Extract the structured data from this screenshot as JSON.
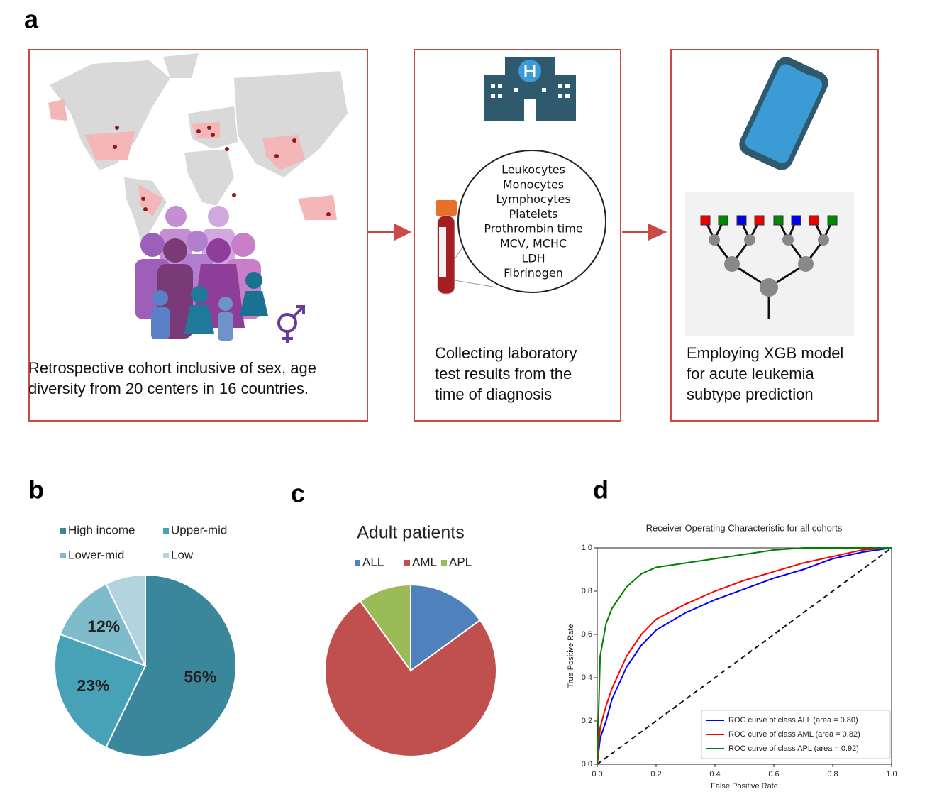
{
  "panel_labels": [
    "a",
    "b",
    "c",
    "d"
  ],
  "panel_a": {
    "cohort": {
      "caption": [
        "Retrospective cohort inclusive of sex, age",
        "diversity from 20 centers in 16 countries."
      ]
    },
    "laboratory": {
      "tests": [
        "Leukocytes",
        "Monocytes",
        "Lymphocytes",
        "Platelets",
        "Prothrombin time",
        "MCV, MCHC",
        "LDH",
        "Fibrinogen"
      ],
      "caption": [
        "Collecting laboratory",
        "test results from the",
        "time of diagnosis"
      ]
    },
    "model": {
      "caption": [
        "Employing  XGB model",
        "for acute leukemia",
        "subtype prediction"
      ]
    }
  },
  "chart_data": [
    {
      "type": "pie",
      "categories": [
        "High income",
        "Upper-mid",
        "Lower-mid",
        "Low"
      ],
      "values": [
        56,
        23,
        12,
        7
      ],
      "value_labels": [
        "56%",
        "23%",
        "12%",
        null
      ],
      "colors": [
        "#3a879c",
        "#48a2b7",
        "#7fbccb",
        "#b2d4df"
      ]
    },
    {
      "type": "pie",
      "title": "Adult patients",
      "categories": [
        "ALL",
        "AML",
        "APL"
      ],
      "values": [
        15,
        75,
        10
      ],
      "colors": [
        "#4f81bd",
        "#c0504d",
        "#9bbb59"
      ]
    },
    {
      "type": "line",
      "title": "Receiver Operating Characteristic for all cohorts",
      "x_label": "False Positive Rate",
      "y_label": "True Positive Rate",
      "x": [
        0,
        0.01,
        0.03,
        0.05,
        0.1,
        0.15,
        0.2,
        0.3,
        0.4,
        0.5,
        0.6,
        0.7,
        0.8,
        0.9,
        1
      ],
      "series": [
        {
          "name": "ROC curve of class ALL (area = 0.80)",
          "color": "#0000ff",
          "values": [
            0,
            0.12,
            0.2,
            0.3,
            0.45,
            0.55,
            0.62,
            0.7,
            0.76,
            0.81,
            0.86,
            0.9,
            0.95,
            0.98,
            1
          ]
        },
        {
          "name": "ROC curve of class AML (area = 0.82)",
          "color": "#ff0000",
          "values": [
            0,
            0.17,
            0.27,
            0.35,
            0.5,
            0.6,
            0.67,
            0.74,
            0.8,
            0.85,
            0.89,
            0.93,
            0.96,
            0.99,
            1
          ]
        },
        {
          "name": "ROC curve of class APL (area = 0.92)",
          "color": "#008000",
          "values": [
            0,
            0.5,
            0.65,
            0.72,
            0.82,
            0.88,
            0.91,
            0.93,
            0.95,
            0.97,
            0.99,
            1,
            1,
            1,
            1
          ]
        }
      ],
      "xlim": [
        0,
        1
      ],
      "ylim": [
        0,
        1
      ],
      "xticks": [
        {
          "value": 0,
          "label": "0.0"
        },
        0.2,
        0.4,
        0.6,
        0.8,
        {
          "value": 1,
          "label": "1.0"
        }
      ],
      "yticks": [
        {
          "value": 0,
          "label": "0.0"
        },
        0.2,
        0.4,
        0.6,
        0.8,
        {
          "value": 1,
          "label": "1.0"
        }
      ],
      "legend": "lower right",
      "grid": false
    }
  ]
}
